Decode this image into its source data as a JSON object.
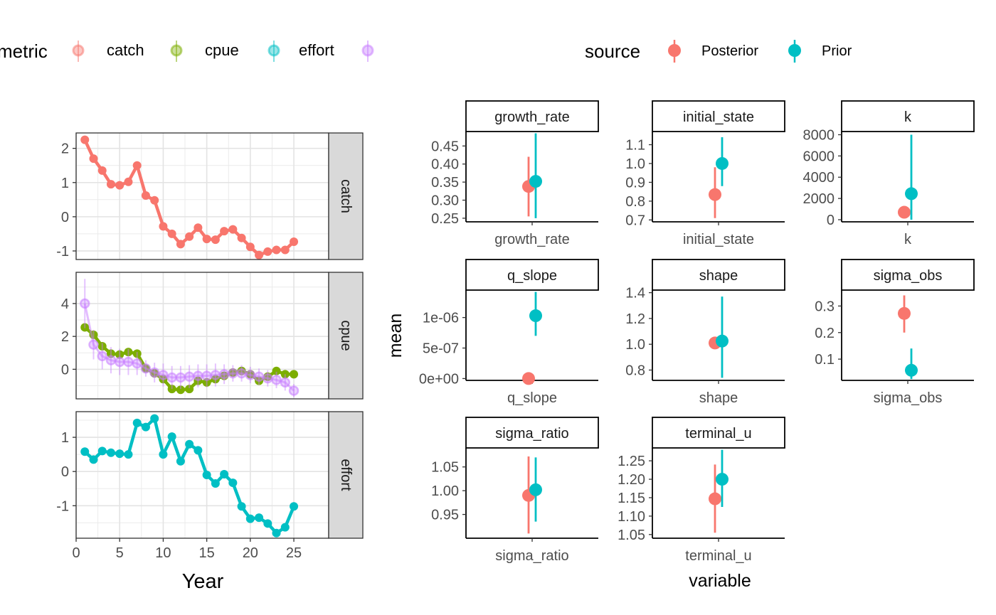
{
  "left_legend": {
    "title": "metric",
    "entries": [
      {
        "label": "catch",
        "color": "#F8766D"
      },
      {
        "label": "cpue",
        "color": "#7CAE00"
      },
      {
        "label": "effort",
        "color": "#00BFC4"
      },
      {
        "label": "",
        "color": "#C77CFF"
      }
    ]
  },
  "right_legend": {
    "title": "source",
    "entries": [
      {
        "label": "Posterior",
        "color": "#F8766D"
      },
      {
        "label": "Prior",
        "color": "#00BFC4"
      }
    ]
  },
  "left_xlabel": "Year",
  "right_xlabel": "variable",
  "right_ylabel": "mean",
  "chart_data": [
    {
      "type": "line",
      "facet": "catch",
      "xlim": [
        0,
        29
      ],
      "ylim": [
        -1.25,
        2.45
      ],
      "xticks": [
        "0",
        "5",
        "10",
        "15",
        "20",
        "25"
      ],
      "yticks": [
        "-1",
        "0",
        "1",
        "2"
      ],
      "grid": true,
      "series": [
        {
          "name": "catch",
          "color": "#F8766D",
          "x": [
            1,
            2,
            3,
            4,
            5,
            6,
            7,
            8,
            9,
            10,
            11,
            12,
            13,
            14,
            15,
            16,
            17,
            18,
            19,
            20,
            21,
            22,
            23,
            24,
            25
          ],
          "y": [
            2.25,
            1.7,
            1.35,
            0.95,
            0.92,
            1.02,
            1.5,
            0.62,
            0.48,
            -0.28,
            -0.5,
            -0.8,
            -0.58,
            -0.32,
            -0.65,
            -0.67,
            -0.42,
            -0.37,
            -0.62,
            -0.88,
            -1.12,
            -1.02,
            -0.97,
            -0.97,
            -0.73
          ]
        }
      ]
    },
    {
      "type": "line",
      "facet": "cpue",
      "xlim": [
        0,
        29
      ],
      "ylim": [
        -1.8,
        5.9
      ],
      "xticks": [
        "0",
        "5",
        "10",
        "15",
        "20",
        "25"
      ],
      "yticks": [
        "0",
        "2",
        "4"
      ],
      "grid": true,
      "series": [
        {
          "name": "cpue",
          "color": "#7CAE00",
          "x": [
            1,
            2,
            3,
            4,
            5,
            6,
            7,
            8,
            9,
            10,
            11,
            12,
            13,
            14,
            15,
            16,
            17,
            18,
            19,
            20,
            21,
            22,
            23,
            24,
            25
          ],
          "y": [
            2.55,
            2.1,
            1.4,
            0.95,
            0.9,
            1.05,
            0.95,
            0.05,
            -0.25,
            -0.6,
            -1.2,
            -1.25,
            -1.2,
            -0.7,
            -0.8,
            -0.6,
            -0.4,
            -0.2,
            -0.1,
            -0.3,
            -0.7,
            -0.45,
            -0.1,
            -0.3,
            -0.3
          ]
        },
        {
          "name": "",
          "color": "#C77CFF",
          "x": [
            1,
            2,
            3,
            4,
            5,
            6,
            7,
            8,
            9,
            10,
            11,
            12,
            13,
            14,
            15,
            16,
            17,
            18,
            19,
            20,
            21,
            22,
            23,
            24,
            25
          ],
          "y": [
            4.0,
            1.5,
            0.8,
            0.55,
            0.45,
            0.45,
            0.35,
            0.05,
            -0.2,
            -0.35,
            -0.5,
            -0.5,
            -0.45,
            -0.4,
            -0.4,
            -0.35,
            -0.3,
            -0.25,
            -0.25,
            -0.35,
            -0.45,
            -0.55,
            -0.65,
            -0.8,
            -1.3
          ],
          "err": [
            1.5,
            0.9,
            0.8,
            0.8,
            0.8,
            0.8,
            0.7,
            0.5,
            0.6,
            0.7,
            0.7,
            0.7,
            0.7,
            0.7,
            0.7,
            0.7,
            0.6,
            0.5,
            0.5,
            0.5,
            0.5,
            0.5,
            0.5,
            0.5,
            0.4
          ]
        }
      ]
    },
    {
      "type": "line",
      "facet": "effort",
      "xlim": [
        0,
        29
      ],
      "ylim": [
        -1.95,
        1.75
      ],
      "xticks": [
        "0",
        "5",
        "10",
        "15",
        "20",
        "25"
      ],
      "yticks": [
        "-1",
        "0",
        "1"
      ],
      "grid": true,
      "series": [
        {
          "name": "effort",
          "color": "#00BFC4",
          "x": [
            1,
            2,
            3,
            4,
            5,
            6,
            7,
            8,
            9,
            10,
            11,
            12,
            13,
            14,
            15,
            16,
            17,
            18,
            19,
            20,
            21,
            22,
            23,
            24,
            25
          ],
          "y": [
            0.58,
            0.35,
            0.6,
            0.55,
            0.52,
            0.5,
            1.42,
            1.3,
            1.55,
            0.5,
            1.02,
            0.3,
            0.8,
            0.62,
            -0.1,
            -0.35,
            -0.08,
            -0.33,
            -1.02,
            -1.38,
            -1.35,
            -1.52,
            -1.8,
            -1.63,
            -1.02
          ]
        }
      ]
    },
    {
      "type": "scatter",
      "facet": "growth_rate",
      "category": "growth_rate",
      "ylim": [
        0.24,
        0.49
      ],
      "yticks": [
        "0.25",
        "0.30",
        "0.35",
        "0.40",
        "0.45"
      ],
      "points": [
        {
          "source": "Posterior",
          "mean": 0.338,
          "lo": 0.255,
          "hi": 0.42
        },
        {
          "source": "Prior",
          "mean": 0.352,
          "lo": 0.25,
          "hi": 0.485
        }
      ]
    },
    {
      "type": "scatter",
      "facet": "initial_state",
      "category": "initial_state",
      "ylim": [
        0.69,
        1.17
      ],
      "yticks": [
        "0.7",
        "0.8",
        "0.9",
        "1.0",
        "1.1"
      ],
      "points": [
        {
          "source": "Posterior",
          "mean": 0.835,
          "lo": 0.71,
          "hi": 0.98
        },
        {
          "source": "Prior",
          "mean": 1.0,
          "lo": 0.88,
          "hi": 1.14
        }
      ]
    },
    {
      "type": "scatter",
      "facet": "k",
      "category": "k",
      "ylim": [
        -200,
        8300
      ],
      "yticks": [
        "0",
        "2000",
        "4000",
        "6000",
        "8000"
      ],
      "points": [
        {
          "source": "Posterior",
          "mean": 700,
          "lo": 400,
          "hi": 1000
        },
        {
          "source": "Prior",
          "mean": 2450,
          "lo": 0,
          "hi": 8000
        }
      ]
    },
    {
      "type": "scatter",
      "facet": "q_slope",
      "category": "q_slope",
      "ylim": [
        -3e-08,
        1.45e-06
      ],
      "yticks": [
        "0e+00",
        "5e-07",
        "1e-06"
      ],
      "points": [
        {
          "source": "Posterior",
          "mean": 0.0,
          "lo": 0.0,
          "hi": 0.0
        },
        {
          "source": "Prior",
          "mean": 1.03e-06,
          "lo": 7e-07,
          "hi": 1.42e-06
        }
      ]
    },
    {
      "type": "scatter",
      "facet": "shape",
      "category": "shape",
      "ylim": [
        0.72,
        1.42
      ],
      "yticks": [
        "0.8",
        "1.0",
        "1.2",
        "1.4"
      ],
      "points": [
        {
          "source": "Posterior",
          "mean": 1.01,
          "lo": 1.0,
          "hi": 1.02
        },
        {
          "source": "Prior",
          "mean": 1.025,
          "lo": 0.74,
          "hi": 1.37
        }
      ]
    },
    {
      "type": "scatter",
      "facet": "sigma_obs",
      "category": "sigma_obs",
      "ylim": [
        0.02,
        0.36
      ],
      "yticks": [
        "0.1",
        "0.2",
        "0.3"
      ],
      "points": [
        {
          "source": "Posterior",
          "mean": 0.272,
          "lo": 0.2,
          "hi": 0.34
        },
        {
          "source": "Prior",
          "mean": 0.058,
          "lo": 0.025,
          "hi": 0.14
        }
      ]
    },
    {
      "type": "scatter",
      "facet": "sigma_ratio",
      "category": "sigma_ratio",
      "ylim": [
        0.9,
        1.09
      ],
      "yticks": [
        "0.95",
        "1.00",
        "1.05"
      ],
      "points": [
        {
          "source": "Posterior",
          "mean": 0.99,
          "lo": 0.91,
          "hi": 1.072
        },
        {
          "source": "Prior",
          "mean": 1.002,
          "lo": 0.935,
          "hi": 1.07
        }
      ]
    },
    {
      "type": "scatter",
      "facet": "terminal_u",
      "category": "terminal_u",
      "ylim": [
        1.04,
        1.285
      ],
      "yticks": [
        "1.05",
        "1.10",
        "1.15",
        "1.20",
        "1.25"
      ],
      "points": [
        {
          "source": "Posterior",
          "mean": 1.147,
          "lo": 1.055,
          "hi": 1.24
        },
        {
          "source": "Prior",
          "mean": 1.2,
          "lo": 1.125,
          "hi": 1.28
        }
      ]
    }
  ]
}
